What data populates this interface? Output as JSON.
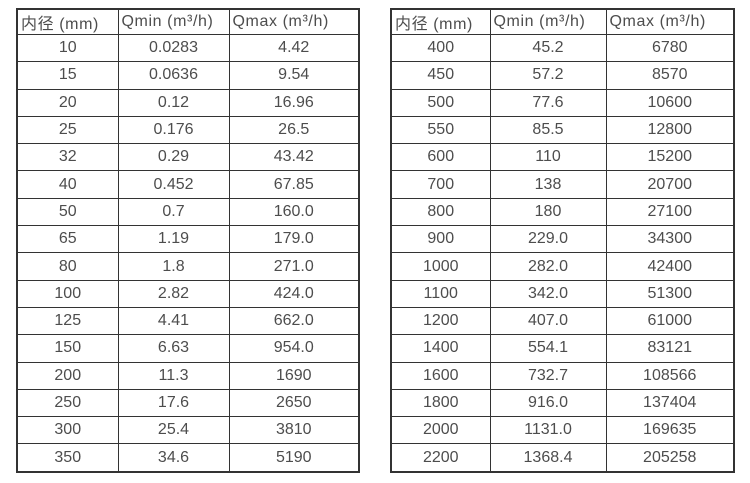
{
  "page": {
    "background_color": "#ffffff",
    "border_color": "#333333",
    "text_color": "#4d4d4d"
  },
  "chart_data": [
    {
      "type": "table",
      "headers": [
        "内径 (mm)",
        "Qmin (m³/h)",
        "Qmax (m³/h)"
      ],
      "rows": [
        [
          "10",
          "0.0283",
          "4.42"
        ],
        [
          "15",
          "0.0636",
          "9.54"
        ],
        [
          "20",
          "0.12",
          "16.96"
        ],
        [
          "25",
          "0.176",
          "26.5"
        ],
        [
          "32",
          "0.29",
          "43.42"
        ],
        [
          "40",
          "0.452",
          "67.85"
        ],
        [
          "50",
          "0.7",
          "160.0"
        ],
        [
          "65",
          "1.19",
          "179.0"
        ],
        [
          "80",
          "1.8",
          "271.0"
        ],
        [
          "100",
          "2.82",
          "424.0"
        ],
        [
          "125",
          "4.41",
          "662.0"
        ],
        [
          "150",
          "6.63",
          "954.0"
        ],
        [
          "200",
          "11.3",
          "1690"
        ],
        [
          "250",
          "17.6",
          "2650"
        ],
        [
          "300",
          "25.4",
          "3810"
        ],
        [
          "350",
          "34.6",
          "5190"
        ]
      ]
    },
    {
      "type": "table",
      "headers": [
        "内径 (mm)",
        "Qmin (m³/h)",
        "Qmax (m³/h)"
      ],
      "rows": [
        [
          "400",
          "45.2",
          "6780"
        ],
        [
          "450",
          "57.2",
          "8570"
        ],
        [
          "500",
          "77.6",
          "10600"
        ],
        [
          "550",
          "85.5",
          "12800"
        ],
        [
          "600",
          "110",
          "15200"
        ],
        [
          "700",
          "138",
          "20700"
        ],
        [
          "800",
          "180",
          "27100"
        ],
        [
          "900",
          "229.0",
          "34300"
        ],
        [
          "1000",
          "282.0",
          "42400"
        ],
        [
          "1100",
          "342.0",
          "51300"
        ],
        [
          "1200",
          "407.0",
          "61000"
        ],
        [
          "1400",
          "554.1",
          "83121"
        ],
        [
          "1600",
          "732.7",
          "108566"
        ],
        [
          "1800",
          "916.0",
          "137404"
        ],
        [
          "2000",
          "1131.0",
          "169635"
        ],
        [
          "2200",
          "1368.4",
          "205258"
        ]
      ]
    }
  ]
}
